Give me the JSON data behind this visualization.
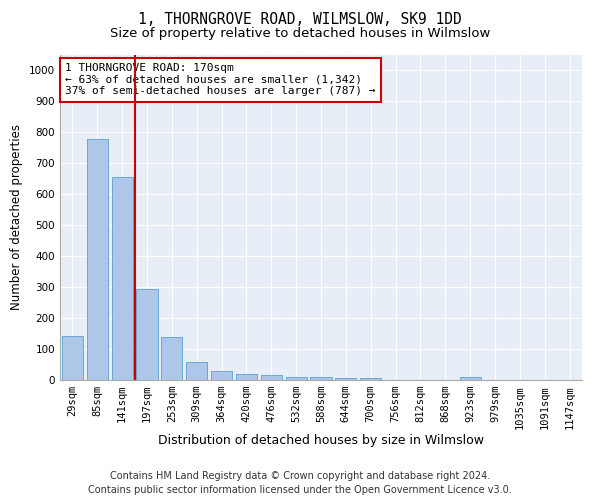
{
  "title": "1, THORNGROVE ROAD, WILMSLOW, SK9 1DD",
  "subtitle": "Size of property relative to detached houses in Wilmslow",
  "xlabel": "Distribution of detached houses by size in Wilmslow",
  "ylabel": "Number of detached properties",
  "bar_labels": [
    "29sqm",
    "85sqm",
    "141sqm",
    "197sqm",
    "253sqm",
    "309sqm",
    "364sqm",
    "420sqm",
    "476sqm",
    "532sqm",
    "588sqm",
    "644sqm",
    "700sqm",
    "756sqm",
    "812sqm",
    "868sqm",
    "923sqm",
    "979sqm",
    "1035sqm",
    "1091sqm",
    "1147sqm"
  ],
  "bar_values": [
    143,
    778,
    656,
    295,
    138,
    57,
    30,
    20,
    16,
    10,
    9,
    8,
    8,
    0,
    0,
    0,
    10,
    0,
    0,
    0,
    0
  ],
  "bar_color": "#aec6e8",
  "bar_edge_color": "#5a9fd4",
  "vline_x": 2.5,
  "vline_color": "#cc0000",
  "annotation_text": "1 THORNGROVE ROAD: 170sqm\n← 63% of detached houses are smaller (1,342)\n37% of semi-detached houses are larger (787) →",
  "annotation_box_color": "#cc0000",
  "ylim": [
    0,
    1050
  ],
  "yticks": [
    0,
    100,
    200,
    300,
    400,
    500,
    600,
    700,
    800,
    900,
    1000
  ],
  "footer_line1": "Contains HM Land Registry data © Crown copyright and database right 2024.",
  "footer_line2": "Contains public sector information licensed under the Open Government Licence v3.0.",
  "fig_background_color": "#ffffff",
  "plot_background_color": "#e8eef7",
  "grid_color": "#ffffff",
  "title_fontsize": 10.5,
  "subtitle_fontsize": 9.5,
  "xlabel_fontsize": 9,
  "ylabel_fontsize": 8.5,
  "tick_fontsize": 7.5,
  "annotation_fontsize": 8,
  "footer_fontsize": 7
}
